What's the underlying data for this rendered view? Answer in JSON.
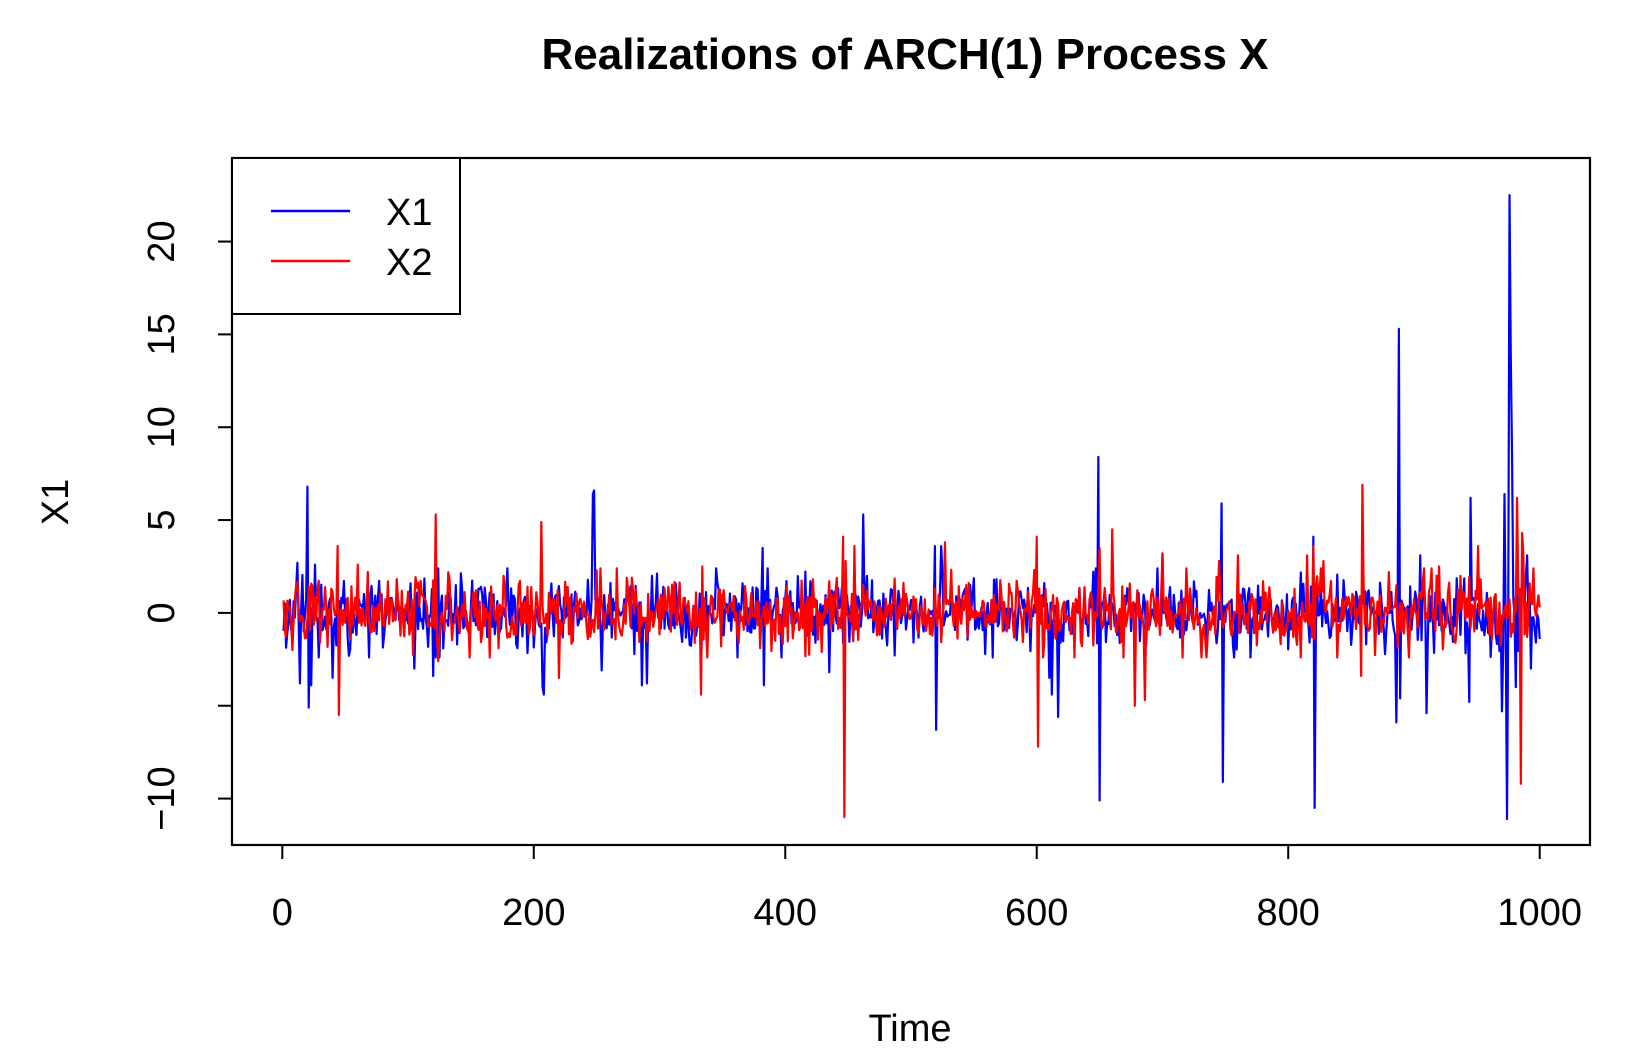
{
  "chart_data": {
    "type": "line",
    "title": "Realizations of ARCH(1) Process X",
    "xlabel": "Time",
    "ylabel": "X1",
    "xlim": [
      -40,
      1040
    ],
    "ylim": [
      -12.5,
      24.5
    ],
    "x_ticks": [
      0,
      200,
      400,
      600,
      800,
      1000
    ],
    "x_tick_labels": [
      "0",
      "200",
      "400",
      "600",
      "800",
      "1000"
    ],
    "y_ticks": [
      -10,
      -5,
      0,
      5,
      10,
      15,
      20
    ],
    "y_tick_labels": [
      "−10",
      "",
      "0",
      "5",
      "10",
      "15",
      "20"
    ],
    "grid": false,
    "legend_position": "top-left",
    "n_points": 1000,
    "series": [
      {
        "name": "X1",
        "color": "#0000ff",
        "seed": 11,
        "spikes": [
          [
            12,
            2.7
          ],
          [
            14,
            -3.8
          ],
          [
            20,
            6.8
          ],
          [
            21,
            -5.1
          ],
          [
            23,
            -3.9
          ],
          [
            26,
            2.6
          ],
          [
            40,
            -3.5
          ],
          [
            105,
            -3.0
          ],
          [
            120,
            -3.4
          ],
          [
            207,
            -4.0
          ],
          [
            208,
            -4.4
          ],
          [
            247,
            6.4
          ],
          [
            248,
            6.6
          ],
          [
            254,
            -3.1
          ],
          [
            286,
            -3.9
          ],
          [
            290,
            -3.8
          ],
          [
            333,
            -3.7
          ],
          [
            382,
            3.5
          ],
          [
            383,
            -3.9
          ],
          [
            435,
            -3.2
          ],
          [
            462,
            5.3
          ],
          [
            519,
            3.6
          ],
          [
            520,
            -6.3
          ],
          [
            524,
            3.6
          ],
          [
            610,
            -3.5
          ],
          [
            612,
            -4.4
          ],
          [
            617,
            -5.6
          ],
          [
            649,
            8.4
          ],
          [
            650,
            -10.1
          ],
          [
            700,
            3.2
          ],
          [
            747,
            5.9
          ],
          [
            748,
            -9.1
          ],
          [
            820,
            4.1
          ],
          [
            821,
            -10.5
          ],
          [
            886,
            -5.9
          ],
          [
            888,
            15.3
          ],
          [
            889,
            -4.6
          ],
          [
            905,
            3.1
          ],
          [
            910,
            -5.4
          ],
          [
            944,
            -4.8
          ],
          [
            945,
            6.2
          ],
          [
            970,
            -5.3
          ],
          [
            972,
            6.4
          ],
          [
            974,
            -11.1
          ],
          [
            976,
            22.5
          ],
          [
            977,
            13.8
          ],
          [
            978,
            8.5
          ],
          [
            981,
            -4.0
          ],
          [
            986,
            3.2
          ],
          [
            990,
            3.1
          ],
          [
            993,
            -3.0
          ],
          [
            997,
            -1.6
          ],
          [
            1000,
            -1.4
          ]
        ]
      },
      {
        "name": "X2",
        "color": "#ff0000",
        "seed": 47,
        "spikes": [
          [
            8,
            -2.0
          ],
          [
            44,
            3.6
          ],
          [
            45,
            -5.5
          ],
          [
            60,
            2.6
          ],
          [
            122,
            5.3
          ],
          [
            124,
            -2.6
          ],
          [
            206,
            4.9
          ],
          [
            220,
            -3.5
          ],
          [
            250,
            2.3
          ],
          [
            333,
            -4.4
          ],
          [
            334,
            2.5
          ],
          [
            446,
            4.1
          ],
          [
            447,
            -11.0
          ],
          [
            448,
            2.8
          ],
          [
            455,
            3.6
          ],
          [
            527,
            3.8
          ],
          [
            600,
            4.1
          ],
          [
            601,
            -7.2
          ],
          [
            650,
            3.5
          ],
          [
            660,
            4.5
          ],
          [
            678,
            -5.0
          ],
          [
            686,
            -4.7
          ],
          [
            700,
            3.2
          ],
          [
            745,
            2.8
          ],
          [
            760,
            3.1
          ],
          [
            815,
            3.1
          ],
          [
            820,
            3.6
          ],
          [
            828,
            2.8
          ],
          [
            858,
            -3.4
          ],
          [
            859,
            6.9
          ],
          [
            880,
            2.2
          ],
          [
            920,
            2.5
          ],
          [
            951,
            3.6
          ],
          [
            982,
            6.2
          ],
          [
            985,
            -9.2
          ],
          [
            986,
            4.3
          ],
          [
            987,
            3.2
          ],
          [
            1000,
            0.3
          ]
        ]
      }
    ]
  }
}
